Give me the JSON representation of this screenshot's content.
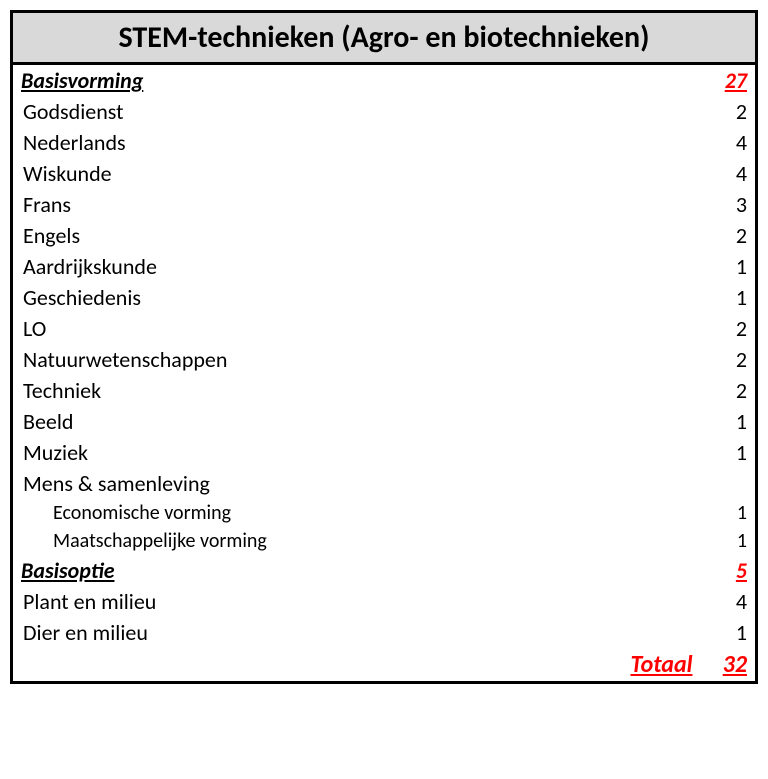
{
  "title": "STEM-technieken (Agro- en biotechnieken)",
  "sections": [
    {
      "label": "Basisvorming",
      "total": 27,
      "rows": [
        {
          "subject": "Godsdienst",
          "hours": 2,
          "indent": false
        },
        {
          "subject": "Nederlands",
          "hours": 4,
          "indent": false
        },
        {
          "subject": "Wiskunde",
          "hours": 4,
          "indent": false
        },
        {
          "subject": "Frans",
          "hours": 3,
          "indent": false
        },
        {
          "subject": "Engels",
          "hours": 2,
          "indent": false
        },
        {
          "subject": "Aardrijkskunde",
          "hours": 1,
          "indent": false
        },
        {
          "subject": "Geschiedenis",
          "hours": 1,
          "indent": false
        },
        {
          "subject": "LO",
          "hours": 2,
          "indent": false
        },
        {
          "subject": "Natuurwetenschappen",
          "hours": 2,
          "indent": false
        },
        {
          "subject": "Techniek",
          "hours": 2,
          "indent": false
        },
        {
          "subject": "Beeld",
          "hours": 1,
          "indent": false
        },
        {
          "subject": "Muziek",
          "hours": 1,
          "indent": false
        },
        {
          "subject": "Mens & samenleving",
          "hours": "",
          "indent": false
        },
        {
          "subject": "Economische vorming",
          "hours": 1,
          "indent": true
        },
        {
          "subject": "Maatschappelijke vorming",
          "hours": 1,
          "indent": true
        }
      ]
    },
    {
      "label": "Basisoptie",
      "total": 5,
      "rows": [
        {
          "subject": "Plant en milieu",
          "hours": 4,
          "indent": false
        },
        {
          "subject": "Dier en milieu",
          "hours": 1,
          "indent": false
        }
      ]
    }
  ],
  "total_label": "Totaal",
  "total_value": 32,
  "colors": {
    "header_bg": "#d9d9d9",
    "accent": "#ff0000",
    "border": "#000000",
    "text": "#000000"
  }
}
